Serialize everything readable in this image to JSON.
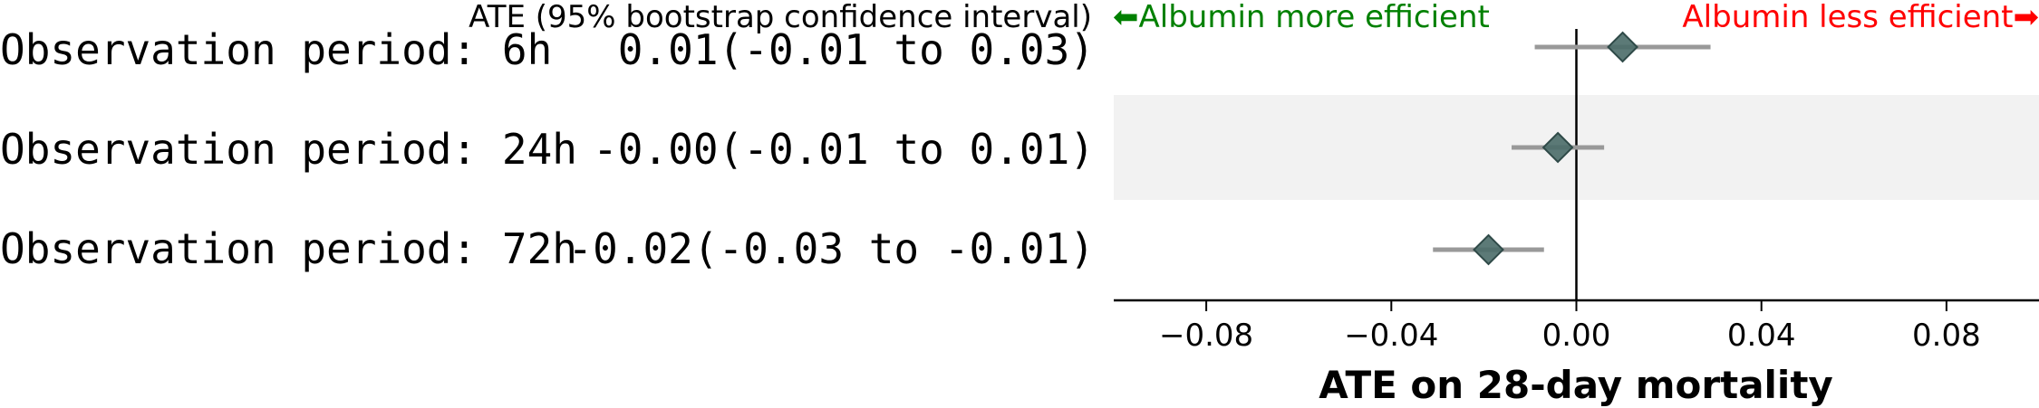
{
  "header": {
    "left_text": "ATE (95% bootstrap confidence interval)",
    "more_efficient_text": "⬅Albumin more efficient",
    "less_efficient_text": "Albumin less efficient➡",
    "more_efficient_color": "#008000",
    "less_efficient_color": "#ff0000"
  },
  "chart_data": {
    "type": "forest",
    "xlabel": "ATE on 28-day mortality",
    "xlim": [
      -0.1,
      0.1
    ],
    "xticks": [
      -0.08,
      -0.04,
      0.0,
      0.04,
      0.08
    ],
    "xtick_labels": [
      "−0.08",
      "−0.04",
      "0.00",
      "0.04",
      "0.08"
    ],
    "reference_line": 0.0,
    "rows": [
      {
        "label": "Observation period: 6h",
        "estimate_text": "0.01(-0.01 to  0.03)",
        "estimate": 0.01,
        "ci_low": -0.009,
        "ci_high": 0.029
      },
      {
        "label": "Observation period: 24h",
        "estimate_text": "-0.00(-0.01 to  0.01)",
        "estimate": -0.004,
        "ci_low": -0.014,
        "ci_high": 0.006
      },
      {
        "label": "Observation period: 72h",
        "estimate_text": "-0.02(-0.03 to -0.01)",
        "estimate": -0.019,
        "ci_low": -0.031,
        "ci_high": -0.007
      }
    ],
    "marker_color": "#4a6b68",
    "ci_color": "#999999",
    "band_color": "#f2f2f2"
  }
}
